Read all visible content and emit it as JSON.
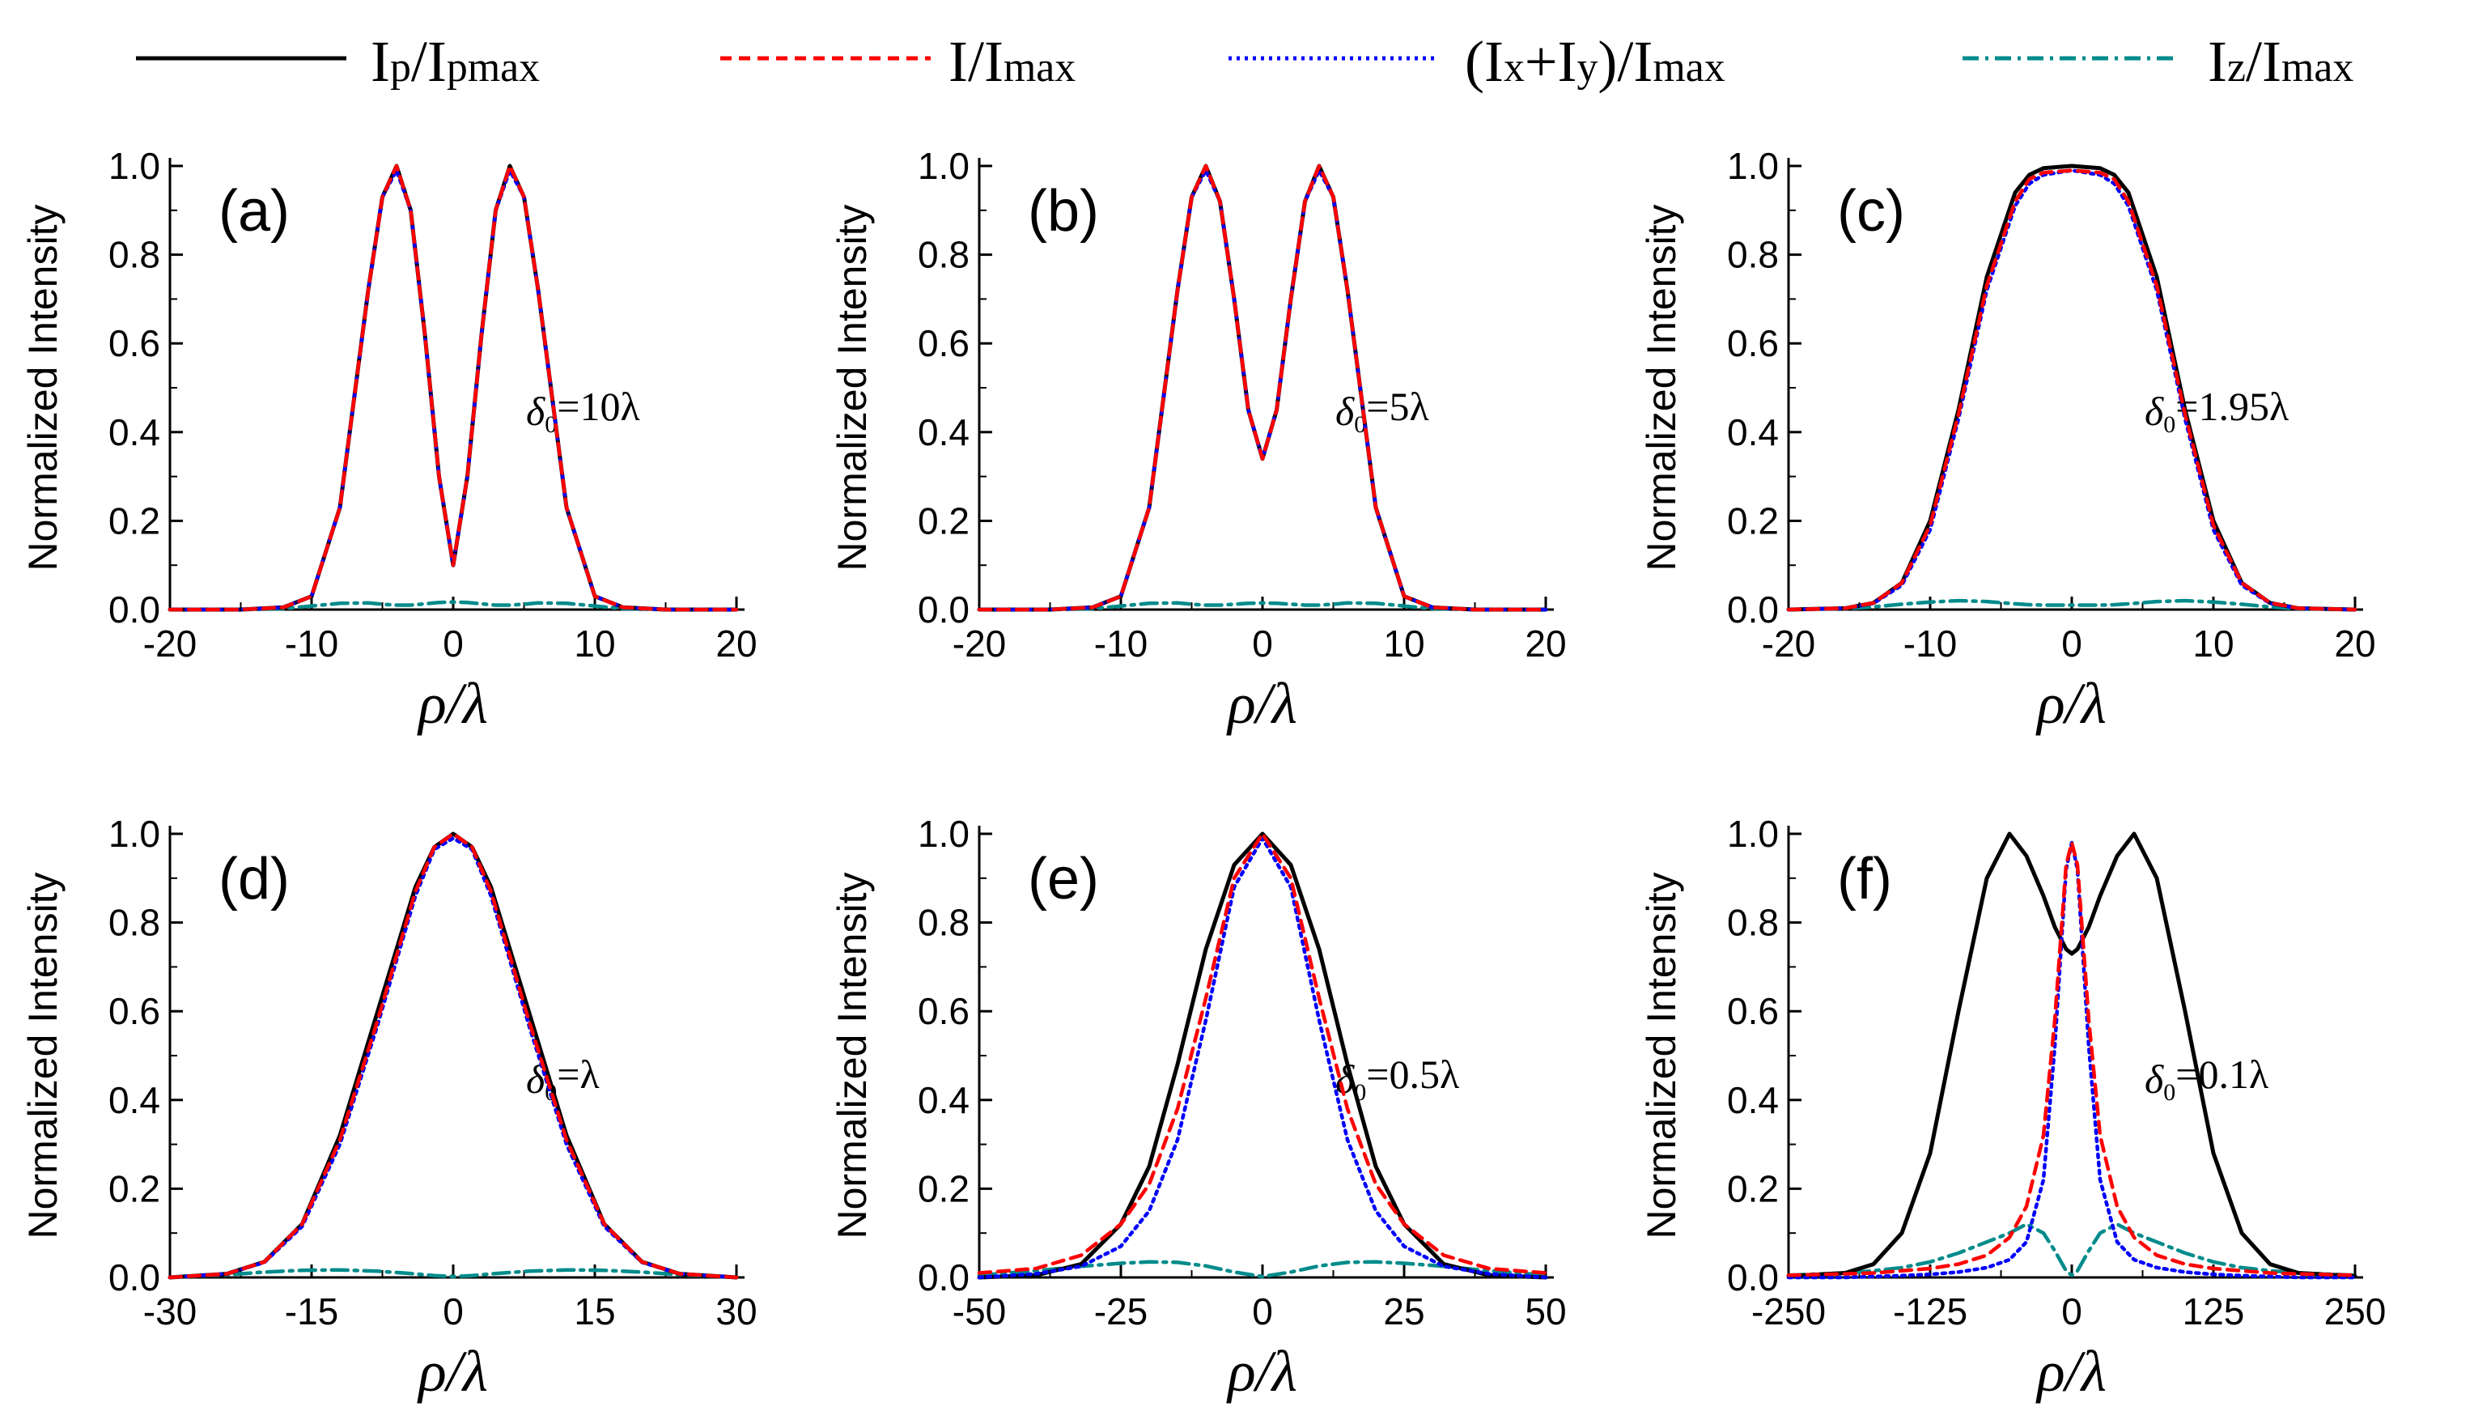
{
  "figure": {
    "legend": [
      {
        "key": "Ip",
        "label": "Ip/Ipmax",
        "color": "#000000",
        "dash": "solid"
      },
      {
        "key": "I",
        "label": "I/Imax",
        "color": "#ff0000",
        "dash": "dash"
      },
      {
        "key": "Ixy",
        "label": "(Ix+Iy)/Imax",
        "color": "#0000ff",
        "dash": "dot"
      },
      {
        "key": "Iz",
        "label": "Iz/Imax",
        "color": "#008b8b",
        "dash": "dashdot"
      }
    ]
  },
  "chart_data": [
    {
      "type": "line",
      "panel_label": "(a)",
      "annotation": "δ0=10λ",
      "xlabel": "ρ/λ",
      "ylabel": "Normalized Intensity",
      "xlim": [
        -20,
        20
      ],
      "ylim": [
        0,
        1.0
      ],
      "xticks": [
        "-20",
        "-10",
        "0",
        "10",
        "20"
      ],
      "yticks": [
        "0.0",
        "0.2",
        "0.4",
        "0.6",
        "0.8",
        "1.0"
      ],
      "x": [
        -20,
        -15,
        -12,
        -10,
        -8,
        -6,
        -5,
        -4,
        -3,
        -2,
        -1,
        0,
        1,
        2,
        3,
        4,
        5,
        6,
        8,
        10,
        12,
        15,
        20
      ],
      "series": [
        {
          "name": "Ip/Ipmax",
          "values": [
            0,
            0,
            0.005,
            0.03,
            0.23,
            0.72,
            0.93,
            1.0,
            0.9,
            0.62,
            0.3,
            0.1,
            0.3,
            0.62,
            0.9,
            1.0,
            0.93,
            0.72,
            0.23,
            0.03,
            0.005,
            0,
            0
          ]
        },
        {
          "name": "I/Imax",
          "values": [
            0,
            0,
            0.005,
            0.03,
            0.23,
            0.72,
            0.93,
            1.0,
            0.9,
            0.62,
            0.3,
            0.1,
            0.3,
            0.62,
            0.9,
            1.0,
            0.93,
            0.72,
            0.23,
            0.03,
            0.005,
            0,
            0
          ]
        },
        {
          "name": "(Ix+Iy)/Imax",
          "values": [
            0,
            0,
            0.005,
            0.03,
            0.23,
            0.72,
            0.93,
            0.99,
            0.9,
            0.62,
            0.3,
            0.1,
            0.3,
            0.62,
            0.9,
            0.99,
            0.93,
            0.72,
            0.23,
            0.03,
            0.005,
            0,
            0
          ]
        },
        {
          "name": "Iz/Imax",
          "values": [
            0,
            0,
            0.002,
            0.008,
            0.014,
            0.015,
            0.012,
            0.01,
            0.01,
            0.013,
            0.016,
            0.017,
            0.016,
            0.013,
            0.01,
            0.01,
            0.012,
            0.015,
            0.014,
            0.008,
            0.002,
            0,
            0
          ]
        }
      ]
    },
    {
      "type": "line",
      "panel_label": "(b)",
      "annotation": "δ0=5λ",
      "xlabel": "ρ/λ",
      "ylabel": "Normalized Intensity",
      "xlim": [
        -20,
        20
      ],
      "ylim": [
        0,
        1.0
      ],
      "xticks": [
        "-20",
        "-10",
        "0",
        "10",
        "20"
      ],
      "yticks": [
        "0.0",
        "0.2",
        "0.4",
        "0.6",
        "0.8",
        "1.0"
      ],
      "x": [
        -20,
        -15,
        -12,
        -10,
        -8,
        -6,
        -5,
        -4,
        -3,
        -2,
        -1,
        0,
        1,
        2,
        3,
        4,
        5,
        6,
        8,
        10,
        12,
        15,
        20
      ],
      "series": [
        {
          "name": "Ip/Ipmax",
          "values": [
            0,
            0,
            0.005,
            0.03,
            0.23,
            0.72,
            0.93,
            1.0,
            0.92,
            0.7,
            0.45,
            0.34,
            0.45,
            0.7,
            0.92,
            1.0,
            0.93,
            0.72,
            0.23,
            0.03,
            0.005,
            0,
            0
          ]
        },
        {
          "name": "I/Imax",
          "values": [
            0,
            0,
            0.005,
            0.03,
            0.23,
            0.72,
            0.93,
            1.0,
            0.92,
            0.7,
            0.45,
            0.34,
            0.45,
            0.7,
            0.92,
            1.0,
            0.93,
            0.72,
            0.23,
            0.03,
            0.005,
            0,
            0
          ]
        },
        {
          "name": "(Ix+Iy)/Imax",
          "values": [
            0,
            0,
            0.005,
            0.03,
            0.23,
            0.72,
            0.93,
            0.99,
            0.92,
            0.7,
            0.45,
            0.34,
            0.45,
            0.7,
            0.92,
            0.99,
            0.93,
            0.72,
            0.23,
            0.03,
            0.005,
            0,
            0
          ]
        },
        {
          "name": "Iz/Imax",
          "values": [
            0,
            0,
            0.002,
            0.008,
            0.014,
            0.015,
            0.012,
            0.01,
            0.01,
            0.012,
            0.014,
            0.015,
            0.014,
            0.012,
            0.01,
            0.01,
            0.012,
            0.015,
            0.014,
            0.008,
            0.002,
            0,
            0
          ]
        }
      ]
    },
    {
      "type": "line",
      "panel_label": "(c)",
      "annotation": "δ0=1.95λ",
      "xlabel": "ρ/λ",
      "ylabel": "Normalized Intensity",
      "xlim": [
        -20,
        20
      ],
      "ylim": [
        0,
        1.0
      ],
      "xticks": [
        "-20",
        "-10",
        "0",
        "10",
        "20"
      ],
      "yticks": [
        "0.0",
        "0.2",
        "0.4",
        "0.6",
        "0.8",
        "1.0"
      ],
      "x": [
        -20,
        -16,
        -14,
        -12,
        -10,
        -8,
        -6,
        -4,
        -3,
        -2,
        0,
        2,
        3,
        4,
        6,
        8,
        10,
        12,
        14,
        16,
        20
      ],
      "series": [
        {
          "name": "Ip/Ipmax",
          "values": [
            0,
            0.003,
            0.015,
            0.06,
            0.2,
            0.45,
            0.75,
            0.94,
            0.98,
            0.995,
            1.0,
            0.995,
            0.98,
            0.94,
            0.75,
            0.45,
            0.2,
            0.06,
            0.015,
            0.003,
            0
          ]
        },
        {
          "name": "I/Imax",
          "values": [
            0,
            0.003,
            0.015,
            0.06,
            0.19,
            0.44,
            0.73,
            0.92,
            0.97,
            0.985,
            0.99,
            0.985,
            0.97,
            0.92,
            0.73,
            0.44,
            0.19,
            0.06,
            0.015,
            0.003,
            0
          ]
        },
        {
          "name": "(Ix+Iy)/Imax",
          "values": [
            0,
            0.003,
            0.014,
            0.055,
            0.18,
            0.43,
            0.72,
            0.91,
            0.96,
            0.98,
            0.99,
            0.98,
            0.96,
            0.91,
            0.72,
            0.43,
            0.18,
            0.055,
            0.014,
            0.003,
            0
          ]
        },
        {
          "name": "Iz/Imax",
          "values": [
            0,
            0.002,
            0.006,
            0.012,
            0.017,
            0.02,
            0.018,
            0.013,
            0.011,
            0.01,
            0.01,
            0.01,
            0.011,
            0.013,
            0.018,
            0.02,
            0.017,
            0.012,
            0.006,
            0.002,
            0
          ]
        }
      ]
    },
    {
      "type": "line",
      "panel_label": "(d)",
      "annotation": "δ0=λ",
      "xlabel": "ρ/λ",
      "ylabel": "Normalized Intensity",
      "xlim": [
        -30,
        30
      ],
      "ylim": [
        0,
        1.0
      ],
      "xticks": [
        "-30",
        "-15",
        "0",
        "15",
        "30"
      ],
      "yticks": [
        "0.0",
        "0.2",
        "0.4",
        "0.6",
        "0.8",
        "1.0"
      ],
      "x": [
        -30,
        -24,
        -20,
        -16,
        -12,
        -8,
        -4,
        -2,
        0,
        2,
        4,
        8,
        12,
        16,
        20,
        24,
        30
      ],
      "series": [
        {
          "name": "Ip/Ipmax",
          "values": [
            0,
            0.008,
            0.035,
            0.12,
            0.32,
            0.6,
            0.88,
            0.97,
            1.0,
            0.97,
            0.88,
            0.6,
            0.32,
            0.12,
            0.035,
            0.008,
            0
          ]
        },
        {
          "name": "I/Imax",
          "values": [
            0,
            0.008,
            0.035,
            0.12,
            0.31,
            0.58,
            0.87,
            0.97,
            1.0,
            0.97,
            0.87,
            0.58,
            0.31,
            0.12,
            0.035,
            0.008,
            0
          ]
        },
        {
          "name": "(Ix+Iy)/Imax",
          "values": [
            0,
            0.008,
            0.034,
            0.115,
            0.3,
            0.57,
            0.86,
            0.965,
            0.99,
            0.965,
            0.86,
            0.57,
            0.3,
            0.115,
            0.034,
            0.008,
            0
          ]
        },
        {
          "name": "Iz/Imax",
          "values": [
            0,
            0.006,
            0.012,
            0.016,
            0.017,
            0.014,
            0.008,
            0.004,
            0.002,
            0.004,
            0.008,
            0.014,
            0.017,
            0.016,
            0.012,
            0.006,
            0
          ]
        }
      ]
    },
    {
      "type": "line",
      "panel_label": "(e)",
      "annotation": "δ0=0.5λ",
      "xlabel": "ρ/λ",
      "ylabel": "Normalized Intensity",
      "xlim": [
        -50,
        50
      ],
      "ylim": [
        0,
        1.0
      ],
      "xticks": [
        "-50",
        "-25",
        "0",
        "25",
        "50"
      ],
      "yticks": [
        "0.0",
        "0.2",
        "0.4",
        "0.6",
        "0.8",
        "1.0"
      ],
      "x": [
        -50,
        -40,
        -32,
        -25,
        -20,
        -15,
        -10,
        -5,
        0,
        5,
        10,
        15,
        20,
        25,
        32,
        40,
        50
      ],
      "series": [
        {
          "name": "Ip/Ipmax",
          "values": [
            0,
            0.005,
            0.03,
            0.12,
            0.25,
            0.48,
            0.74,
            0.93,
            1.0,
            0.93,
            0.74,
            0.48,
            0.25,
            0.12,
            0.03,
            0.005,
            0
          ]
        },
        {
          "name": "I/Imax",
          "values": [
            0.01,
            0.02,
            0.05,
            0.12,
            0.21,
            0.38,
            0.63,
            0.9,
            1.0,
            0.9,
            0.63,
            0.38,
            0.21,
            0.12,
            0.05,
            0.02,
            0.01
          ]
        },
        {
          "name": "(Ix+Iy)/Imax",
          "values": [
            0,
            0.008,
            0.025,
            0.07,
            0.15,
            0.31,
            0.58,
            0.88,
            0.99,
            0.88,
            0.58,
            0.31,
            0.15,
            0.07,
            0.025,
            0.008,
            0
          ]
        },
        {
          "name": "Iz/Imax",
          "values": [
            0.005,
            0.015,
            0.025,
            0.032,
            0.035,
            0.034,
            0.026,
            0.012,
            0.002,
            0.012,
            0.026,
            0.034,
            0.035,
            0.032,
            0.025,
            0.015,
            0.005
          ]
        }
      ]
    },
    {
      "type": "line",
      "panel_label": "(f)",
      "annotation": "δ0=0.1λ",
      "xlabel": "ρ/λ",
      "ylabel": "Normalized Intensity",
      "xlim": [
        -250,
        250
      ],
      "ylim": [
        0,
        1.0
      ],
      "xticks": [
        "-250",
        "-125",
        "0",
        "125",
        "250"
      ],
      "yticks": [
        "0.0",
        "0.2",
        "0.4",
        "0.6",
        "0.8",
        "1.0"
      ],
      "x": [
        -250,
        -200,
        -175,
        -150,
        -125,
        -100,
        -75,
        -55,
        -40,
        -25,
        -15,
        -5,
        0,
        5,
        15,
        25,
        40,
        55,
        75,
        100,
        125,
        150,
        175,
        200,
        250
      ],
      "series": [
        {
          "name": "Ip/Ipmax",
          "values": [
            0.003,
            0.01,
            0.03,
            0.1,
            0.28,
            0.6,
            0.9,
            1.0,
            0.95,
            0.86,
            0.79,
            0.74,
            0.73,
            0.74,
            0.79,
            0.86,
            0.95,
            1.0,
            0.9,
            0.6,
            0.28,
            0.1,
            0.03,
            0.01,
            0.003
          ]
        },
        {
          "name": "I/Imax",
          "values": [
            0.005,
            0.008,
            0.01,
            0.015,
            0.02,
            0.03,
            0.05,
            0.09,
            0.16,
            0.32,
            0.58,
            0.93,
            0.98,
            0.93,
            0.58,
            0.32,
            0.16,
            0.09,
            0.05,
            0.03,
            0.02,
            0.015,
            0.01,
            0.008,
            0.005
          ]
        },
        {
          "name": "(Ix+Iy)/Imax",
          "values": [
            0,
            0,
            0.002,
            0.004,
            0.007,
            0.012,
            0.022,
            0.04,
            0.08,
            0.22,
            0.52,
            0.92,
            0.98,
            0.92,
            0.52,
            0.22,
            0.08,
            0.04,
            0.022,
            0.012,
            0.007,
            0.004,
            0.002,
            0,
            0
          ]
        },
        {
          "name": "Iz/Imax",
          "values": [
            0.005,
            0.01,
            0.015,
            0.022,
            0.035,
            0.055,
            0.08,
            0.1,
            0.12,
            0.1,
            0.06,
            0.015,
            0.005,
            0.015,
            0.06,
            0.1,
            0.12,
            0.1,
            0.08,
            0.055,
            0.035,
            0.022,
            0.015,
            0.01,
            0.005
          ]
        }
      ]
    }
  ]
}
